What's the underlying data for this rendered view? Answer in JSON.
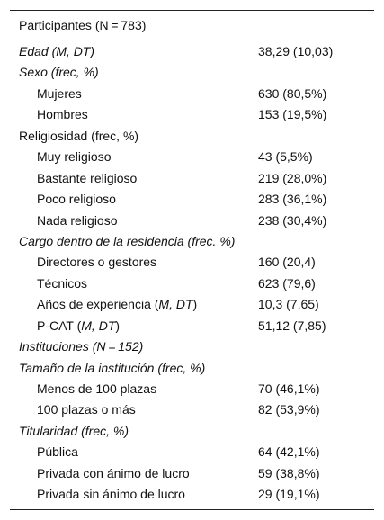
{
  "header": "Participantes (N = 783)",
  "rows": [
    {
      "label": "Edad (M, DT)",
      "value": "38,29 (10,03)",
      "style": "italic"
    },
    {
      "label": "Sexo (frec, %)",
      "value": "",
      "style": "italic"
    },
    {
      "label": "Mujeres",
      "value": "630 (80,5%)",
      "indent": true
    },
    {
      "label": "Hombres",
      "value": "153 (19,5%)",
      "indent": true
    },
    {
      "label": "Religiosidad (frec, %)",
      "value": ""
    },
    {
      "label": "Muy religioso",
      "value": "43 (5,5%)",
      "indent": true
    },
    {
      "label": "Bastante religioso",
      "value": "219 (28,0%)",
      "indent": true
    },
    {
      "label": "Poco religioso",
      "value": "283 (36,1%)",
      "indent": true
    },
    {
      "label": "Nada religioso",
      "value": "238 (30,4%)",
      "indent": true
    },
    {
      "label": "Cargo dentro de la residencia (frec. %)",
      "value": "",
      "style": "italic"
    },
    {
      "label": "Directores o gestores",
      "value": "160 (20,4)",
      "indent": true
    },
    {
      "label": "Técnicos",
      "value": "623 (79,6)",
      "indent": true
    },
    {
      "label": "Años de experiencia (M, DT)",
      "value": "10,3 (7,65)",
      "indent": true
    },
    {
      "label": "P-CAT (M, DT)",
      "value": "51,12 (7,85)",
      "indent": true
    },
    {
      "label": "Instituciones (N = 152)",
      "value": "",
      "style": "italic"
    },
    {
      "label": "Tamaño de la institución (frec, %)",
      "value": "",
      "style": "italic"
    },
    {
      "label": "Menos de 100 plazas",
      "value": "70 (46,1%)",
      "indent": true
    },
    {
      "label": "100 plazas o más",
      "value": "82 (53,9%)",
      "indent": true
    },
    {
      "label": "Titularidad (frec, %)",
      "value": "",
      "style": "italic"
    },
    {
      "label": "Pública",
      "value": "64 (42,1%)",
      "indent": true
    },
    {
      "label": "Privada con ánimo de lucro",
      "value": "59 (38,8%)",
      "indent": true
    },
    {
      "label": "Privada sin ánimo de lucro",
      "value": "29 (19,1%)",
      "indent": true
    }
  ]
}
